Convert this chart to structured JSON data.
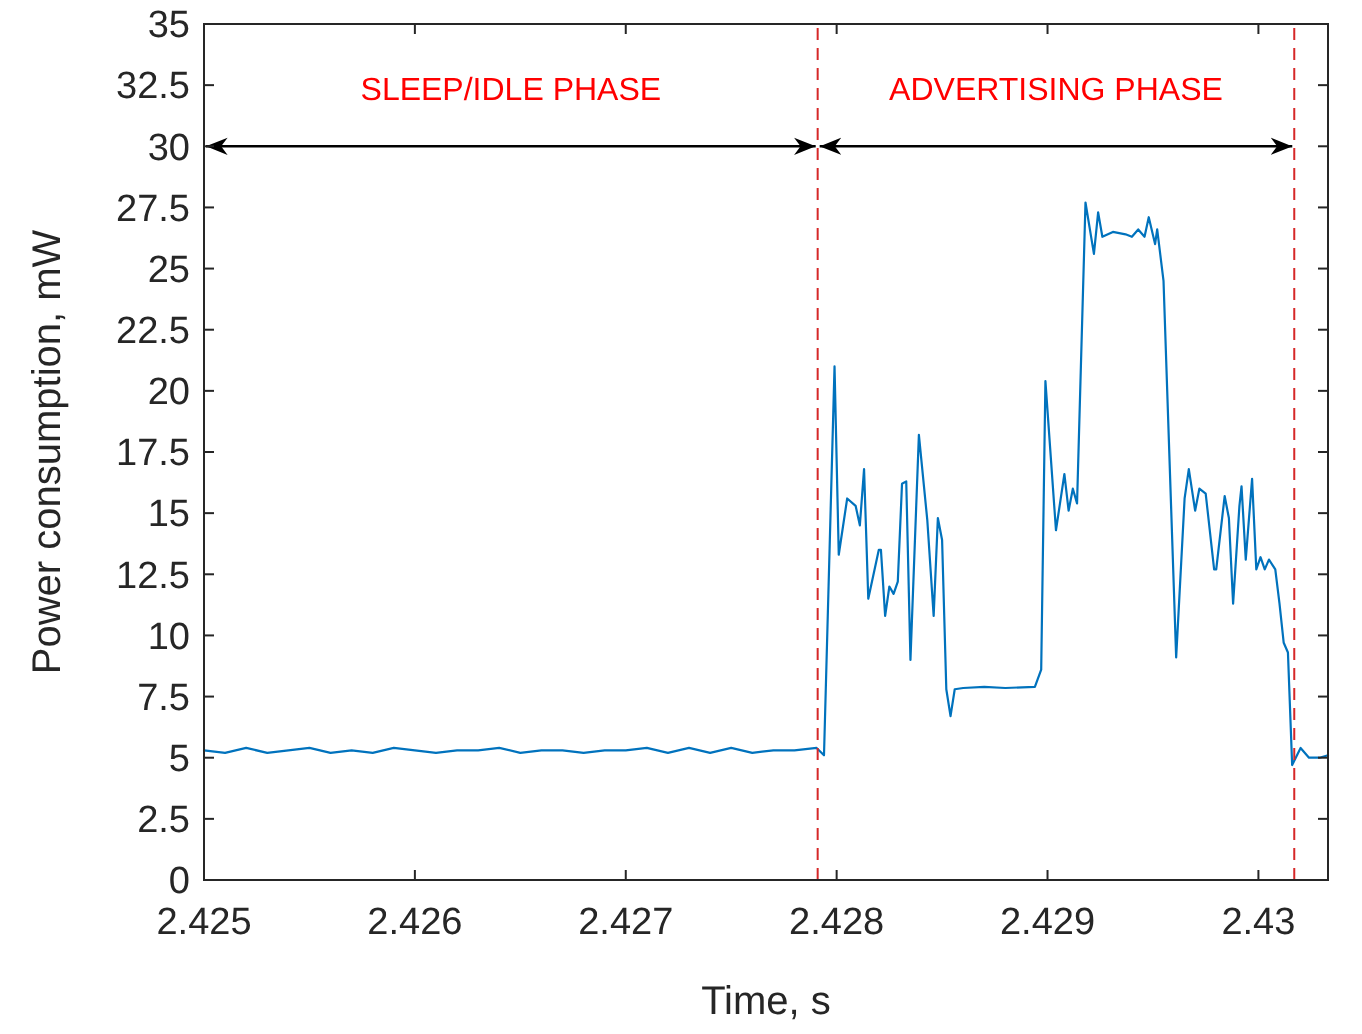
{
  "chart_data": {
    "type": "line",
    "xlabel": "Time, s",
    "ylabel": "Power consumption, mW",
    "xlim": [
      2.425,
      2.43033
    ],
    "xticks": [
      2.425,
      2.426,
      2.427,
      2.428,
      2.429,
      2.43
    ],
    "ylim": [
      0,
      35
    ],
    "yticks": [
      0,
      2.5,
      5,
      7.5,
      10,
      12.5,
      15,
      17.5,
      20,
      22.5,
      25,
      27.5,
      30,
      32.5,
      35
    ],
    "marker": "none",
    "line_style": "solid",
    "annotations": [
      "SLEEP/IDLE PHASE",
      "ADVERTISING PHASE"
    ],
    "ref_lines": [
      {
        "axis": "x",
        "value": 2.42791,
        "label": null,
        "color": "#d62728",
        "line_style": "dashed"
      },
      {
        "axis": "x",
        "value": 2.43017,
        "label": null,
        "color": "#d62728",
        "line_style": "dashed"
      }
    ],
    "series": [
      {
        "color": "#0072bd",
        "x": [
          2.425,
          2.4251,
          2.4252,
          2.4253,
          2.4254,
          2.4255,
          2.4256,
          2.4257,
          2.4258,
          2.4259,
          2.426,
          2.4261,
          2.4262,
          2.4263,
          2.4264,
          2.4265,
          2.4266,
          2.4267,
          2.4268,
          2.4269,
          2.427,
          2.4271,
          2.4272,
          2.4273,
          2.4274,
          2.4275,
          2.4276,
          2.4277,
          2.4278,
          2.427905,
          2.42794,
          2.42799,
          2.42801,
          2.42805,
          2.42809,
          2.42811,
          2.42813,
          2.42815,
          2.4282,
          2.42821,
          2.42823,
          2.42825,
          2.42827,
          2.42829,
          2.42831,
          2.42833,
          2.42835,
          2.42839,
          2.42843,
          2.42846,
          2.42848,
          2.4285,
          2.42852,
          2.42854,
          2.42856,
          2.4286,
          2.4287,
          2.4288,
          2.42894,
          2.42897,
          2.42899,
          2.42904,
          2.42908,
          2.4291,
          2.42912,
          2.42914,
          2.42918,
          2.42922,
          2.42924,
          2.42926,
          2.42931,
          2.42937,
          2.4294,
          2.42943,
          2.42946,
          2.42948,
          2.42951,
          2.42952,
          2.42955,
          2.42961,
          2.42965,
          2.42967,
          2.4297,
          2.42972,
          2.42975,
          2.42979,
          2.4298,
          2.42984,
          2.42986,
          2.42988,
          2.42991,
          2.42992,
          2.42994,
          2.42997,
          2.42999,
          2.43001,
          2.43003,
          2.43005,
          2.43008,
          2.4301,
          2.43012,
          2.43014,
          2.43016,
          2.4302,
          2.43024,
          2.43029,
          2.43033
        ],
        "values": [
          5.3,
          5.2,
          5.4,
          5.2,
          5.3,
          5.4,
          5.2,
          5.3,
          5.2,
          5.4,
          5.3,
          5.2,
          5.3,
          5.3,
          5.4,
          5.2,
          5.3,
          5.3,
          5.2,
          5.3,
          5.3,
          5.4,
          5.2,
          5.4,
          5.2,
          5.4,
          5.2,
          5.3,
          5.3,
          5.4,
          5.1,
          21.0,
          13.3,
          15.6,
          15.3,
          14.5,
          16.8,
          11.5,
          13.5,
          13.5,
          10.8,
          12.0,
          11.7,
          12.2,
          16.2,
          16.3,
          9.0,
          18.2,
          14.7,
          10.8,
          14.8,
          13.9,
          7.8,
          6.7,
          7.8,
          7.85,
          7.9,
          7.85,
          7.9,
          8.6,
          20.4,
          14.3,
          16.6,
          15.1,
          16.0,
          15.4,
          27.7,
          25.6,
          27.3,
          26.3,
          26.5,
          26.4,
          26.3,
          26.6,
          26.3,
          27.1,
          26.0,
          26.6,
          24.5,
          9.1,
          15.6,
          16.8,
          15.1,
          16.0,
          15.8,
          12.7,
          12.7,
          15.7,
          14.8,
          11.3,
          15.3,
          16.1,
          13.1,
          16.4,
          12.7,
          13.2,
          12.7,
          13.1,
          12.7,
          11.3,
          9.7,
          9.3,
          4.7,
          5.4,
          5.0,
          5.0,
          5.1
        ]
      }
    ]
  }
}
